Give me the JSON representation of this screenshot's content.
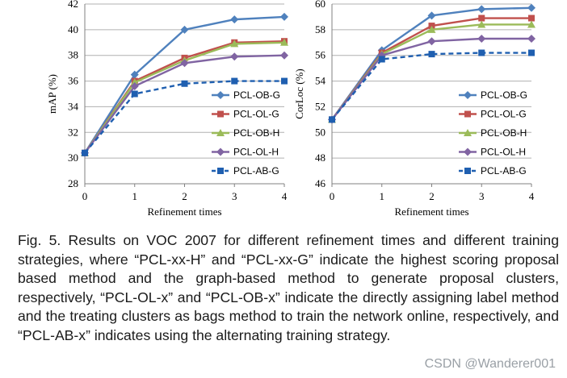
{
  "chart_data": [
    {
      "type": "line",
      "title": "",
      "xlabel": "Refinement times",
      "ylabel": "mAP (%)",
      "x": [
        0,
        1,
        2,
        3,
        4
      ],
      "ylim": [
        28,
        42
      ],
      "yticks": [
        28,
        30,
        32,
        34,
        36,
        38,
        40,
        42
      ],
      "grid": "horizontal",
      "legend_position": "bottom-right",
      "series": [
        {
          "name": "PCL-OB-G",
          "values": [
            30.4,
            36.5,
            40.0,
            40.8,
            41.0
          ],
          "color": "#4f81bd",
          "marker": "diamond",
          "dashed": false
        },
        {
          "name": "PCL-OL-G",
          "values": [
            30.4,
            36.0,
            37.8,
            39.0,
            39.1
          ],
          "color": "#c0504d",
          "marker": "square",
          "dashed": false
        },
        {
          "name": "PCL-OB-H",
          "values": [
            30.4,
            35.9,
            37.6,
            38.9,
            39.0
          ],
          "color": "#9bbb59",
          "marker": "triangle",
          "dashed": false
        },
        {
          "name": "PCL-OL-H",
          "values": [
            30.4,
            35.6,
            37.4,
            37.9,
            38.0
          ],
          "color": "#8064a2",
          "marker": "diamond",
          "dashed": false
        },
        {
          "name": "PCL-AB-G",
          "values": [
            30.4,
            35.0,
            35.8,
            36.0,
            36.0
          ],
          "color": "#1f5fb0",
          "marker": "square",
          "dashed": true
        }
      ]
    },
    {
      "type": "line",
      "title": "",
      "xlabel": "Refinement times",
      "ylabel": "CorLoc (%)",
      "x": [
        0,
        1,
        2,
        3,
        4
      ],
      "ylim": [
        46,
        60
      ],
      "yticks": [
        46,
        48,
        50,
        52,
        54,
        56,
        58,
        60
      ],
      "grid": "horizontal",
      "legend_position": "bottom-right",
      "series": [
        {
          "name": "PCL-OB-G",
          "values": [
            51.0,
            56.4,
            59.1,
            59.6,
            59.7
          ],
          "color": "#4f81bd",
          "marker": "diamond",
          "dashed": false
        },
        {
          "name": "PCL-OL-G",
          "values": [
            51.0,
            56.2,
            58.3,
            58.9,
            58.9
          ],
          "color": "#c0504d",
          "marker": "square",
          "dashed": false
        },
        {
          "name": "PCL-OB-H",
          "values": [
            51.0,
            56.1,
            58.0,
            58.4,
            58.4
          ],
          "color": "#9bbb59",
          "marker": "triangle",
          "dashed": false
        },
        {
          "name": "PCL-OL-H",
          "values": [
            51.0,
            56.0,
            57.1,
            57.3,
            57.3
          ],
          "color": "#8064a2",
          "marker": "diamond",
          "dashed": false
        },
        {
          "name": "PCL-AB-G",
          "values": [
            51.0,
            55.7,
            56.1,
            56.2,
            56.2
          ],
          "color": "#1f5fb0",
          "marker": "square",
          "dashed": true
        }
      ]
    }
  ],
  "caption": "Fig. 5. Results on VOC 2007 for different refinement times and different training strategies, where “PCL-xx-H” and “PCL-xx-G” indicate the highest scoring proposal based method and the graph-based method to generate proposal clusters, respectively, “PCL-OL-x” and “PCL-OB-x” indicate the directly assigning label method and the treating clusters as bags method to train the network online, respectively, and “PCL-AB-x” indicates using the alternating training strategy.",
  "watermark": "CSDN @Wanderer001"
}
